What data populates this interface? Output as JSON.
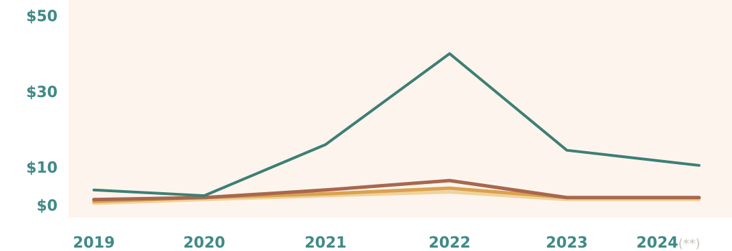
{
  "colors": {
    "background": "#fdf4ee",
    "y_tick": "#3f8a87",
    "x_tick": "#3f8a87",
    "x_tick_suffix": "#c9bfb8",
    "teal": "#3d7f73",
    "brown": "#a8674d",
    "orange": "#dba150",
    "yellow": "#efd39a"
  },
  "chart_data": {
    "type": "line",
    "title": "",
    "xlabel": "",
    "ylabel": "",
    "categories": [
      "2019",
      "2020",
      "2021",
      "2022",
      "2023",
      "2024"
    ],
    "x_tick_labels": [
      {
        "main": "2019",
        "suffix": ""
      },
      {
        "main": "2020",
        "suffix": ""
      },
      {
        "main": "2021",
        "suffix": ""
      },
      {
        "main": "2022",
        "suffix": ""
      },
      {
        "main": "2023",
        "suffix": ""
      },
      {
        "main": "2024",
        "suffix": "(**)"
      }
    ],
    "y_ticks": [
      {
        "value": 0,
        "label": "$0"
      },
      {
        "value": 10,
        "label": "$10"
      },
      {
        "value": 30,
        "label": "$30"
      },
      {
        "value": 50,
        "label": "$50"
      }
    ],
    "ylim": [
      0,
      50
    ],
    "grid": false,
    "legend": "none",
    "series": [
      {
        "color": "yellow",
        "values": [
          0.5,
          1.5,
          2.5,
          3.5,
          1.5,
          1.5
        ]
      },
      {
        "color": "orange",
        "values": [
          1.0,
          2.0,
          3.0,
          4.5,
          2.0,
          2.0
        ]
      },
      {
        "color": "brown",
        "values": [
          1.5,
          2.0,
          4.0,
          6.5,
          2.0,
          2.0
        ]
      },
      {
        "color": "teal",
        "values": [
          4.0,
          2.5,
          16.0,
          40.0,
          14.5,
          10.5
        ]
      }
    ]
  }
}
